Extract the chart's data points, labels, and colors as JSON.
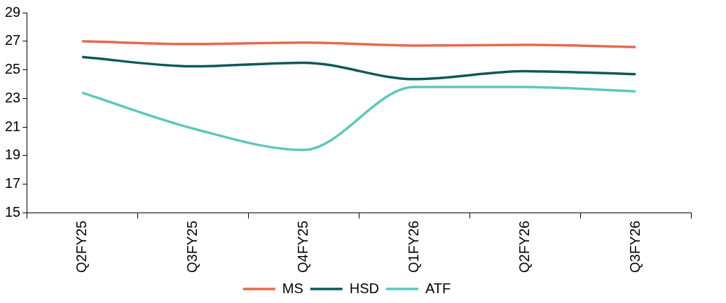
{
  "chart_data": {
    "type": "line",
    "categories": [
      "Q2FY25",
      "Q3FY25",
      "Q4FY25",
      "Q1FY26",
      "Q2FY26",
      "Q3FY26"
    ],
    "series": [
      {
        "name": "MS",
        "color": "#e8694a",
        "values": [
          27.0,
          26.8,
          26.9,
          26.7,
          26.75,
          26.6
        ]
      },
      {
        "name": "HSD",
        "color": "#0b5a57",
        "values": [
          25.9,
          25.25,
          25.5,
          24.35,
          24.9,
          24.7
        ]
      },
      {
        "name": "ATF",
        "color": "#5bc8bc",
        "values": [
          23.4,
          20.9,
          19.4,
          23.8,
          23.8,
          23.5
        ]
      }
    ],
    "ylim": [
      15,
      29
    ],
    "yticks": [
      15,
      17,
      19,
      21,
      23,
      25,
      27,
      29
    ],
    "grid": false,
    "legend": "bottom",
    "marker": "none",
    "line_style": "solid"
  }
}
